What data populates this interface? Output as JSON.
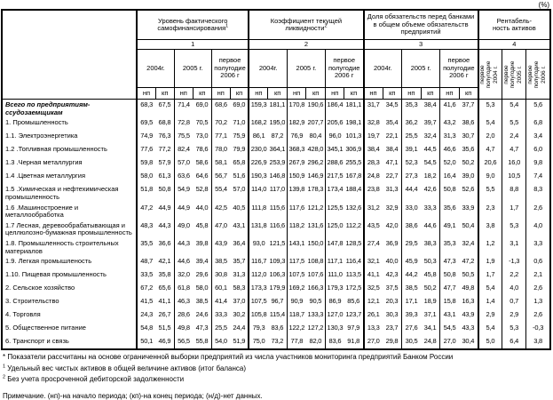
{
  "percent_label": "(%)",
  "table": {
    "groups": [
      {
        "title": "Уровень фактического самофинансирования",
        "sup": "1",
        "num": "1",
        "years": [
          "2004г.",
          "2005 г.",
          "первое\nполугодие\n2006 г"
        ]
      },
      {
        "title": "Коэффициент текущей ликвидности",
        "sup": "2",
        "num": "2",
        "years": [
          "2004г.",
          "2005 г.",
          "первое\nполугодие\n2006 г"
        ]
      },
      {
        "title": "Доля обязательств перед банками в общем объеме обязательств предприятий",
        "sup": "",
        "num": "3",
        "years": [
          "2004г.",
          "2005 г.",
          "первое\nполугодие\n2006 г"
        ]
      },
      {
        "title": "Рентабель-\nность активов",
        "sup": "",
        "num": "4",
        "rotated": [
          "первое\nполугодие\n2004 г.",
          "первое\nполугодие\n2005 г.",
          "первое\nполугодие\n2006 г."
        ]
      }
    ],
    "np_label": "нп",
    "kp_label": "кп",
    "rows": [
      {
        "label": "Всего по предприятиям-ссудозаемщикам",
        "bold": true,
        "values": [
          "68,3",
          "67,5",
          "71,4",
          "69,0",
          "68,6",
          "69,0",
          "159,3",
          "181,1",
          "170,8",
          "190,6",
          "186,4",
          "181,1",
          "31,7",
          "34,5",
          "35,3",
          "38,4",
          "41,6",
          "37,7",
          "5,3",
          "5,4",
          "5,6"
        ]
      },
      {
        "label": "1. Промышленность",
        "values": [
          "69,5",
          "68,8",
          "72,8",
          "70,5",
          "70,2",
          "71,0",
          "168,2",
          "195,0",
          "182,9",
          "207,7",
          "205,6",
          "198,1",
          "32,8",
          "35,4",
          "36,2",
          "39,7",
          "43,2",
          "38,6",
          "5,4",
          "5,5",
          "6,8"
        ]
      },
      {
        "label": "1.1. Электроэнергетика",
        "values": [
          "74,9",
          "76,3",
          "75,5",
          "73,0",
          "77,1",
          "75,9",
          "86,1",
          "87,2",
          "76,9",
          "80,4",
          "96,0",
          "101,3",
          "19,7",
          "22,1",
          "25,5",
          "32,4",
          "31,3",
          "30,7",
          "2,0",
          "2,4",
          "3,4"
        ]
      },
      {
        "label": "1.2 .Топливная промышленность",
        "values": [
          "77,6",
          "77,2",
          "82,4",
          "78,6",
          "78,0",
          "79,9",
          "230,0",
          "364,1",
          "368,3",
          "428,0",
          "345,1",
          "306,9",
          "38,4",
          "38,4",
          "39,1",
          "44,5",
          "46,6",
          "35,6",
          "4,7",
          "4,7",
          "6,0"
        ]
      },
      {
        "label": "1.3 .Черная металлургия",
        "values": [
          "59,8",
          "57,9",
          "57,0",
          "58,6",
          "58,1",
          "65,8",
          "226,9",
          "253,9",
          "267,9",
          "296,2",
          "288,6",
          "255,5",
          "28,3",
          "47,1",
          "52,3",
          "54,5",
          "52,0",
          "50,2",
          "20,6",
          "16,0",
          "9,8"
        ]
      },
      {
        "label": "1.4 .Цветная металлургия",
        "values": [
          "58,0",
          "61,3",
          "63,6",
          "64,6",
          "56,7",
          "51,6",
          "190,3",
          "146,8",
          "150,9",
          "146,9",
          "217,5",
          "167,8",
          "24,8",
          "22,7",
          "27,3",
          "18,2",
          "16,4",
          "39,0",
          "9,0",
          "10,5",
          "7,4"
        ]
      },
      {
        "label": "1.5 .Химическая и нефтехимическая промышленность",
        "values": [
          "51,8",
          "50,8",
          "54,9",
          "52,8",
          "55,4",
          "57,0",
          "114,0",
          "117,0",
          "139,8",
          "178,3",
          "173,4",
          "188,4",
          "23,8",
          "31,3",
          "44,4",
          "42,6",
          "50,8",
          "52,6",
          "5,5",
          "8,8",
          "8,3"
        ]
      },
      {
        "label": "1.6 .Машиностроение и металлообработка",
        "values": [
          "47,2",
          "44,9",
          "44,9",
          "44,0",
          "42,5",
          "40,5",
          "111,8",
          "115,6",
          "117,6",
          "121,2",
          "125,5",
          "132,6",
          "31,2",
          "32,9",
          "33,0",
          "33,3",
          "35,6",
          "33,9",
          "2,3",
          "1,7",
          "2,6"
        ]
      },
      {
        "label": "1.7 Лесная, деревообрабатывающая и целлюлозно-бумажная промышленность",
        "values": [
          "48,3",
          "44,3",
          "49,0",
          "45,8",
          "47,0",
          "43,1",
          "131,8",
          "116,6",
          "118,2",
          "131,6",
          "125,0",
          "112,2",
          "43,5",
          "42,0",
          "38,6",
          "44,6",
          "49,1",
          "50,4",
          "3,8",
          "5,3",
          "4,0"
        ]
      },
      {
        "label": "1.8. Промышленность строительных материалов",
        "values": [
          "35,5",
          "36,6",
          "44,3",
          "39,8",
          "43,9",
          "36,4",
          "93,0",
          "121,5",
          "143,1",
          "150,0",
          "147,8",
          "128,5",
          "27,4",
          "36,9",
          "29,5",
          "38,3",
          "35,3",
          "32,4",
          "1,2",
          "3,1",
          "3,3"
        ]
      },
      {
        "label": "1.9. Легкая промышленость",
        "values": [
          "48,7",
          "42,1",
          "44,6",
          "39,4",
          "38,5",
          "35,7",
          "116,7",
          "109,3",
          "117,5",
          "108,8",
          "117,1",
          "116,4",
          "32,1",
          "40,0",
          "45,9",
          "50,3",
          "47,3",
          "47,2",
          "1,9",
          "-1,3",
          "0,6"
        ]
      },
      {
        "label": "1.10. Пищевая промышленность",
        "values": [
          "33,5",
          "35,8",
          "32,0",
          "29,6",
          "30,8",
          "31,3",
          "112,0",
          "106,3",
          "107,5",
          "107,6",
          "111,0",
          "113,5",
          "41,1",
          "42,3",
          "44,2",
          "45,8",
          "50,8",
          "50,5",
          "1,7",
          "2,2",
          "2,1"
        ]
      },
      {
        "label": "2. Сельское хозяйство",
        "values": [
          "67,2",
          "65,6",
          "61,8",
          "58,0",
          "60,1",
          "58,3",
          "173,3",
          "179,9",
          "169,2",
          "166,3",
          "179,3",
          "172,5",
          "32,5",
          "37,5",
          "38,5",
          "50,2",
          "47,7",
          "49,8",
          "5,4",
          "4,0",
          "2,6"
        ]
      },
      {
        "label": "3. Строительство",
        "values": [
          "41,5",
          "41,1",
          "46,3",
          "38,5",
          "41,4",
          "37,0",
          "107,5",
          "96,7",
          "90,9",
          "90,5",
          "86,9",
          "85,6",
          "12,1",
          "20,3",
          "17,1",
          "18,9",
          "15,8",
          "16,3",
          "1,4",
          "0,7",
          "1,3"
        ]
      },
      {
        "label": "4. Торговля",
        "values": [
          "24,3",
          "26,7",
          "28,6",
          "24,6",
          "33,3",
          "30,2",
          "105,8",
          "115,4",
          "118,7",
          "133,3",
          "127,0",
          "123,7",
          "26,1",
          "30,3",
          "39,3",
          "37,1",
          "43,1",
          "43,9",
          "2,9",
          "2,9",
          "2,6"
        ]
      },
      {
        "label": "5. Общественное питание",
        "values": [
          "54,8",
          "51,5",
          "49,8",
          "47,3",
          "25,5",
          "24,4",
          "79,3",
          "83,6",
          "122,2",
          "127,2",
          "130,3",
          "97,9",
          "13,3",
          "23,7",
          "27,6",
          "34,1",
          "54,5",
          "43,3",
          "5,4",
          "5,3",
          "-0,3"
        ]
      },
      {
        "label": "6. Транспорт и связь",
        "values": [
          "50,1",
          "46,9",
          "56,5",
          "55,8",
          "54,0",
          "51,9",
          "75,0",
          "73,2",
          "77,8",
          "82,0",
          "83,6",
          "91,8",
          "27,0",
          "29,8",
          "30,5",
          "24,8",
          "27,0",
          "30,4",
          "5,0",
          "6,4",
          "3,8"
        ]
      }
    ]
  },
  "footnotes": [
    {
      "marker": "*",
      "sup": false,
      "text": "Показатели рассчитаны на основе ограниченной выборки предприятий из числа участников мониторинга предприятий Банком России"
    },
    {
      "marker": "1",
      "sup": true,
      "text": "Удельный вес чистых активов в общей величине активов (итог баланса)"
    },
    {
      "marker": "2",
      "sup": true,
      "text": "Без учета просроченной дебиторской задолженности"
    },
    {
      "marker": "",
      "sup": false,
      "text": "Примечание.  (нп)-на начало периода; (кп)-на конец периода; (н/д)-нет данных."
    }
  ]
}
